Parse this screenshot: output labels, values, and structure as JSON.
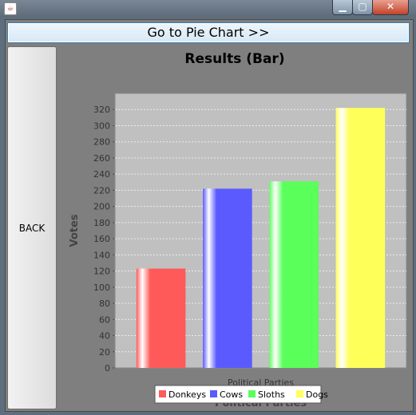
{
  "window": {
    "app_icon": "java-icon",
    "controls": [
      "minimize-icon",
      "maximize-icon",
      "close-icon"
    ]
  },
  "buttons": {
    "top": "Go to Pie Chart >>",
    "back": "BACK"
  },
  "chart_data": {
    "type": "bar",
    "title": "Results (Bar)",
    "xlabel": "Political Parties",
    "ylabel": "Votes",
    "category_label": "Political Parties",
    "ylim": [
      0,
      340
    ],
    "yticks": [
      0,
      20,
      40,
      60,
      80,
      100,
      120,
      140,
      160,
      180,
      200,
      220,
      240,
      260,
      280,
      300,
      320
    ],
    "grid": true,
    "legend_placement": "bottom",
    "series": [
      {
        "name": "Donkeys",
        "value": 123,
        "color": "#ff5a5a"
      },
      {
        "name": "Cows",
        "value": 222,
        "color": "#5a5aff"
      },
      {
        "name": "Sloths",
        "value": 231,
        "color": "#5aff5a"
      },
      {
        "name": "Dogs",
        "value": 322,
        "color": "#ffff5a"
      }
    ]
  }
}
